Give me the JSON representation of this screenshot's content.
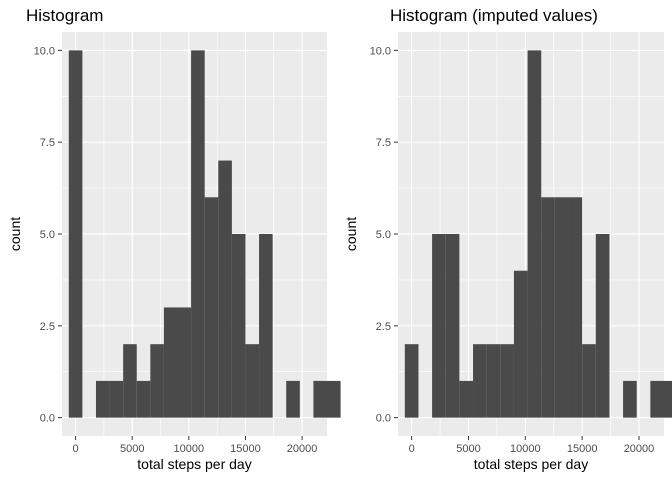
{
  "chart_data": [
    {
      "type": "bar",
      "title": "Histogram",
      "xlabel": "total steps per day",
      "ylabel": "count",
      "bin_width": 1200,
      "bin_start": -600,
      "values": [
        10,
        0,
        1,
        1,
        2,
        1,
        2,
        3,
        3,
        10,
        6,
        7,
        5,
        2,
        5,
        0,
        1,
        0,
        1,
        1
      ],
      "xlim": [
        -1200,
        22200
      ],
      "ylim": [
        -0.5,
        10.5
      ],
      "xticks": [
        0,
        5000,
        10000,
        15000,
        20000
      ],
      "xtick_labels": [
        "0",
        "5000",
        "10000",
        "15000",
        "20000"
      ],
      "yticks": [
        0,
        2.5,
        5,
        7.5,
        10
      ],
      "ytick_labels": [
        "0.0",
        "2.5",
        "5.0",
        "7.5",
        "10.0"
      ],
      "grid": true,
      "bar_color": "#4a4a4a",
      "panel_color": "#ebebeb",
      "grid_color": "#ffffff"
    },
    {
      "type": "bar",
      "title": "Histogram (imputed values)",
      "xlabel": "total steps per day",
      "ylabel": "count",
      "bin_width": 1200,
      "bin_start": -600,
      "values": [
        2,
        0,
        5,
        5,
        1,
        2,
        2,
        2,
        4,
        10,
        6,
        6,
        6,
        2,
        5,
        0,
        1,
        0,
        1,
        1
      ],
      "xlim": [
        -1200,
        22200
      ],
      "ylim": [
        -0.5,
        10.5
      ],
      "xticks": [
        0,
        5000,
        10000,
        15000,
        20000
      ],
      "xtick_labels": [
        "0",
        "5000",
        "10000",
        "15000",
        "20000"
      ],
      "yticks": [
        0,
        2.5,
        5,
        7.5,
        10
      ],
      "ytick_labels": [
        "0.0",
        "2.5",
        "5.0",
        "7.5",
        "10.0"
      ],
      "grid": true,
      "bar_color": "#4a4a4a",
      "panel_color": "#ebebeb",
      "grid_color": "#ffffff"
    }
  ]
}
